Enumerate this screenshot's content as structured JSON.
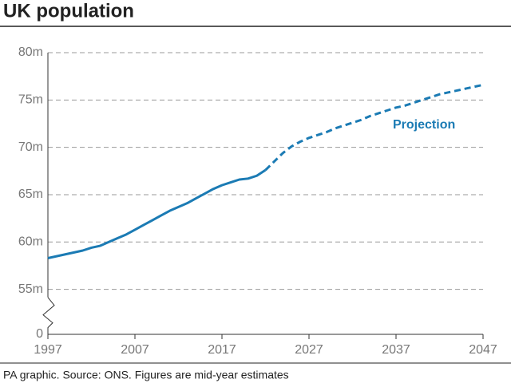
{
  "chart_data": {
    "type": "line",
    "title": "UK population",
    "source": "PA graphic. Source: ONS. Figures are mid-year estimates",
    "annotation": "Projection",
    "x": [
      1997,
      1998,
      1999,
      2000,
      2001,
      2002,
      2003,
      2004,
      2005,
      2006,
      2007,
      2008,
      2009,
      2010,
      2011,
      2012,
      2013,
      2014,
      2015,
      2016,
      2017,
      2018,
      2019,
      2020,
      2021,
      2022,
      2023,
      2024,
      2025,
      2026,
      2027,
      2028,
      2029,
      2030,
      2031,
      2032,
      2033,
      2034,
      2035,
      2036,
      2037,
      2038,
      2039,
      2040,
      2041,
      2042,
      2043,
      2044,
      2045,
      2046,
      2047
    ],
    "series": [
      {
        "color": "#1b7bb4",
        "dashed": false,
        "values": [
          58.3,
          58.5,
          58.7,
          58.9,
          59.1,
          59.4,
          59.6,
          60.0,
          60.4,
          60.8,
          61.3,
          61.8,
          62.3,
          62.8,
          63.3,
          63.7,
          64.1,
          64.6,
          65.1,
          65.6,
          66.0,
          66.3,
          66.6,
          66.7,
          67.0,
          67.6,
          null,
          null,
          null,
          null,
          null,
          null,
          null,
          null,
          null,
          null,
          null,
          null,
          null,
          null,
          null,
          null,
          null,
          null,
          null,
          null,
          null,
          null,
          null,
          null,
          null
        ]
      },
      {
        "name": "Projection",
        "color": "#1b7bb4",
        "dashed": true,
        "values": [
          null,
          null,
          null,
          null,
          null,
          null,
          null,
          null,
          null,
          null,
          null,
          null,
          null,
          null,
          null,
          null,
          null,
          null,
          null,
          null,
          null,
          null,
          null,
          null,
          null,
          67.6,
          68.5,
          69.4,
          70.1,
          70.6,
          71.0,
          71.3,
          71.6,
          72.0,
          72.3,
          72.6,
          72.9,
          73.3,
          73.6,
          73.9,
          74.2,
          74.4,
          74.7,
          75.0,
          75.3,
          75.6,
          75.8,
          76.0,
          76.2,
          76.4,
          76.6
        ]
      }
    ],
    "xlim": [
      1997,
      2047
    ],
    "xticks": [
      1997,
      2007,
      2017,
      2027,
      2037,
      2047
    ],
    "ylim": [
      0,
      80
    ],
    "yticks": [
      {
        "value": 0,
        "label": "0"
      },
      {
        "value": 55,
        "label": "55m"
      },
      {
        "value": 60,
        "label": "60m"
      },
      {
        "value": 65,
        "label": "65m"
      },
      {
        "value": 70,
        "label": "70m"
      },
      {
        "value": 75,
        "label": "75m"
      },
      {
        "value": 80,
        "label": "80m"
      }
    ],
    "y_axis_break": true,
    "grid": true
  }
}
